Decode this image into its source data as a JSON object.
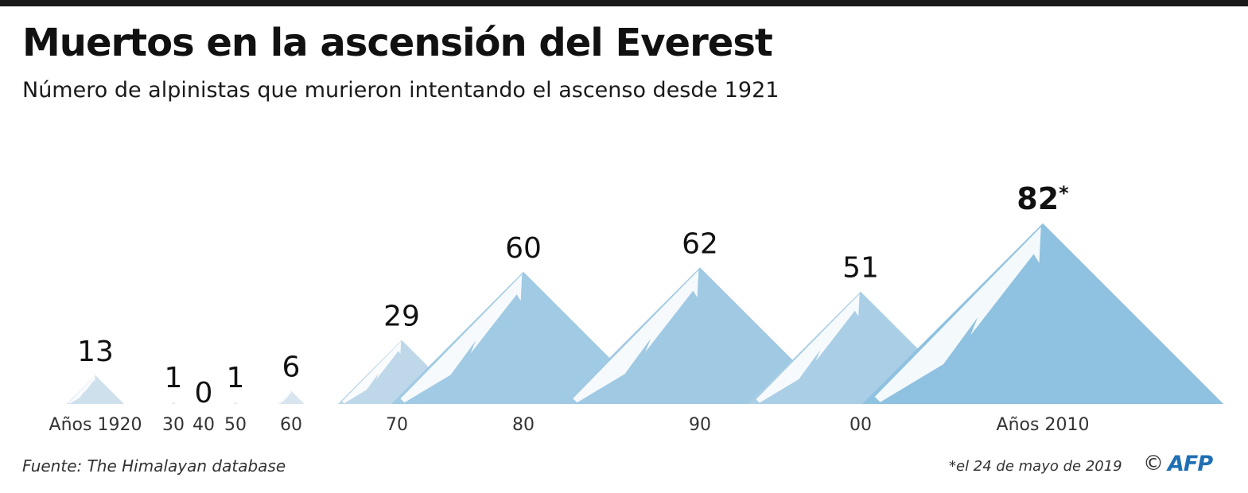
{
  "header": {
    "title": "Muertos en la ascensión del Everest",
    "subtitle": "Número de alpinistas que murieron intentando el ascenso desde 1921"
  },
  "chart_data": {
    "type": "bar",
    "title": "Muertos en la ascensión del Everest",
    "subtitle": "Número de alpinistas que murieron intentando el ascenso desde 1921",
    "categories": [
      "Años 1920",
      "30",
      "40",
      "50",
      "60",
      "70",
      "80",
      "90",
      "00",
      "Años 2010"
    ],
    "values": [
      13,
      1,
      0,
      1,
      6,
      29,
      60,
      62,
      51,
      82
    ],
    "value_labels": [
      "13",
      "1",
      "0",
      "1",
      "6",
      "29",
      "60",
      "62",
      "51",
      "82"
    ],
    "annotation_marks": [
      "",
      "",
      "",
      "",
      "",
      "",
      "",
      "",
      "",
      "*"
    ],
    "mark_style": "mountain",
    "colors": {
      "light": "#e2e9f1",
      "dark": "#8fc1e0",
      "snow": "#ffffff"
    }
  },
  "footer": {
    "source": "Fuente: The Himalayan database",
    "note": "*el 24 de mayo de 2019",
    "copyright": "©",
    "logo": "AFP"
  }
}
